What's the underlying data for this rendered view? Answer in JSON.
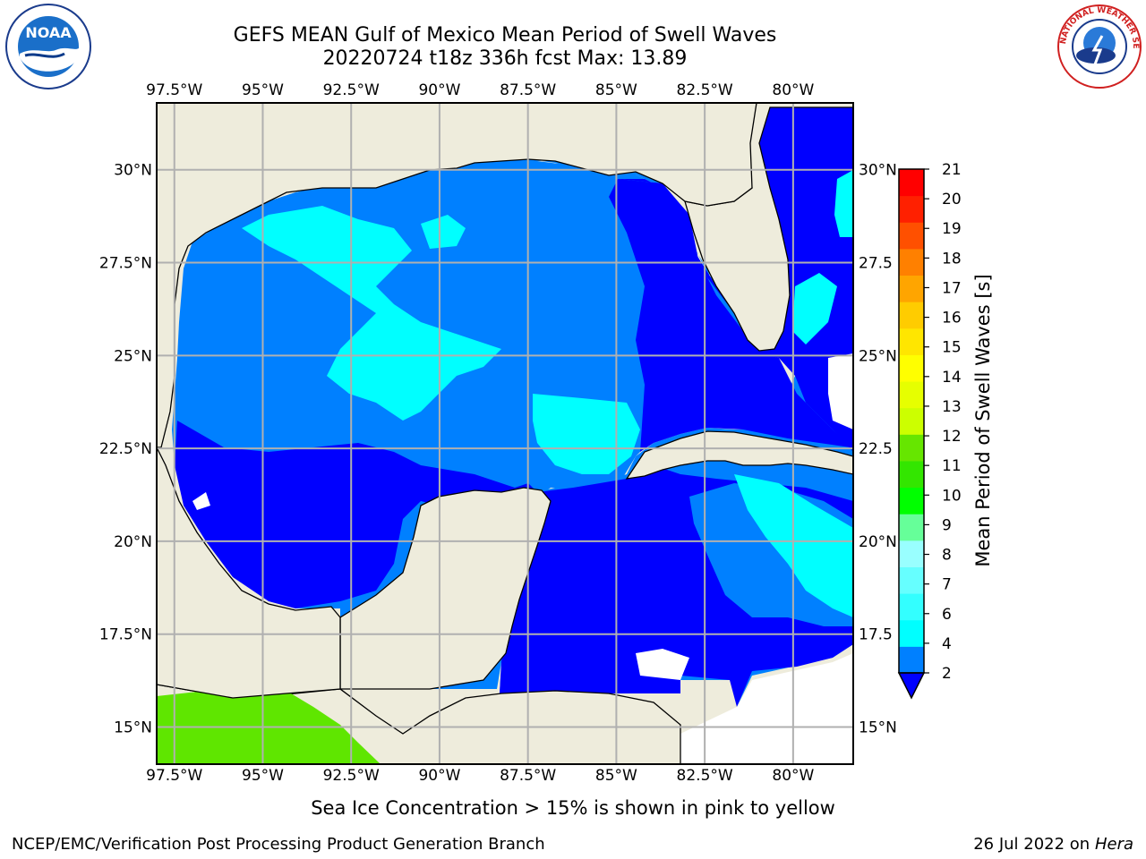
{
  "header": {
    "title_line1": "GEFS MEAN Gulf of Mexico Mean Period of Swell Waves",
    "title_line2": "20220724 t18z 336h fcst   Max: 13.89"
  },
  "map": {
    "lon_ticks": [
      "97.5°W",
      "95°W",
      "92.5°W",
      "90°W",
      "87.5°W",
      "85°W",
      "82.5°W",
      "80°W"
    ],
    "lat_ticks_left": [
      "30°N",
      "27.5°N",
      "25°N",
      "22.5°N",
      "20°N",
      "17.5°N",
      "15°N"
    ],
    "lat_ticks_right": [
      "30°N",
      "27.5",
      "25°N",
      "22.5",
      "20°N",
      "17.5",
      "15°N"
    ],
    "lon_range": [
      -98,
      -78.3
    ],
    "lat_range": [
      14,
      31.8
    ],
    "colors": {
      "land": "#eeecdc",
      "water_missing": "#ffffff",
      "period_2_4": "#0000ff",
      "period_4_6": "#0080ff",
      "period_6_8": "#00ffff",
      "period_10_12": "#5fe600",
      "grid": "#b0b0b0"
    }
  },
  "colorbar": {
    "label": "Mean Period of Swell Waves [s]",
    "tick_labels": [
      "2",
      "4",
      "6",
      "7",
      "8",
      "9",
      "10",
      "11",
      "12",
      "13",
      "14",
      "15",
      "16",
      "17",
      "18",
      "19",
      "20",
      "21"
    ],
    "colors": [
      "#0080ff",
      "#00ffff",
      "#33ffff",
      "#66ffff",
      "#99ffff",
      "#66ff99",
      "#00ff00",
      "#33e600",
      "#66e600",
      "#ccff00",
      "#e6ff00",
      "#ffff00",
      "#ffe600",
      "#ffcc00",
      "#ffa500",
      "#ff8000",
      "#ff5000",
      "#ff2000",
      "#ff0000"
    ],
    "underflow_color": "#0000ff"
  },
  "footnote": "Sea Ice Concentration > 15% is shown in pink to yellow",
  "footer": {
    "left": "NCEP/EMC/Verification Post Processing Product Generation Branch",
    "right_prefix": "26 Jul 2022 on ",
    "right_italic": "Hera"
  },
  "logos": {
    "noaa_text": "NOAA",
    "nws_text": "NATIONAL WEATHER SERVICE"
  }
}
